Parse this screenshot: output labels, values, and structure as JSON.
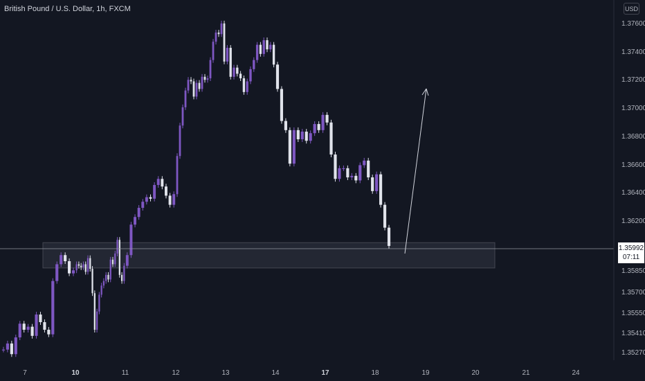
{
  "header": {
    "title": "British Pound / U.S. Dollar, 1h, FXCM"
  },
  "scale": {
    "currency": "USD"
  },
  "last_price": {
    "value": "1.35992",
    "countdown": "07:11"
  },
  "colors": {
    "background": "#131722",
    "bull": "#7e57c2",
    "bear": "#e0e3eb",
    "zone": "#2a2e39",
    "arrow": "#d1d4dc"
  },
  "chart_data": {
    "type": "candlestick",
    "x_labels": [
      "7",
      "10",
      "11",
      "12",
      "13",
      "14",
      "17",
      "18",
      "19",
      "20",
      "21",
      "24"
    ],
    "bold_x_labels": [
      "10",
      "17"
    ],
    "y_tick_labels": [
      "1.37600",
      "1.37400",
      "1.37200",
      "1.37000",
      "1.36800",
      "1.36600",
      "1.36400",
      "1.36200",
      "1.35850",
      "1.35700",
      "1.35550",
      "1.35410",
      "1.35270"
    ],
    "series": [
      {
        "day_label": "7",
        "close_path": [
          1.3533,
          1.3537,
          1.353,
          1.3541,
          1.355,
          1.3546,
          1.3548,
          1.3542,
          1.3556,
          1.3551,
          1.3546,
          1.3543,
          1.3578,
          1.3589,
          1.3595,
          1.3591,
          1.3583,
          1.3585
        ]
      },
      {
        "day_label": "10",
        "close_path": [
          1.3589,
          1.3588,
          1.3587,
          1.3589,
          1.3584,
          1.3593,
          1.3586,
          1.357,
          1.3546,
          1.3558,
          1.3569,
          1.3575,
          1.3578,
          1.3582,
          1.3579,
          1.3592,
          1.3589,
          1.3596,
          1.3605,
          1.3582,
          1.3578,
          1.3588
        ]
      },
      {
        "day_label": "11",
        "close_path": [
          1.3595,
          1.3615,
          1.362,
          1.3626,
          1.363,
          1.3633,
          1.3632,
          1.3641,
          1.3645,
          1.364,
          1.3634,
          1.3628,
          1.3635
        ]
      },
      {
        "day_label": "12",
        "close_path": [
          1.366,
          1.368,
          1.3692,
          1.3703,
          1.371,
          1.3709,
          1.3699,
          1.3708,
          1.3704,
          1.3712,
          1.371,
          1.3711,
          1.3723,
          1.3735,
          1.3741,
          1.374,
          1.3747,
          1.3722
        ]
      },
      {
        "day_label": "13",
        "close_path": [
          1.3731,
          1.3712,
          1.3718,
          1.3714,
          1.3711,
          1.3702,
          1.3709,
          1.3717,
          1.3723,
          1.3733,
          1.3727,
          1.3736,
          1.373,
          1.3733,
          1.372
        ]
      },
      {
        "day_label": "14",
        "close_path": [
          1.3704,
          1.3683,
          1.3677,
          1.3655,
          1.3677,
          1.3671,
          1.3676,
          1.367,
          1.3675,
          1.3681,
          1.3677,
          1.3687,
          1.3682,
          1.3661,
          1.3645,
          1.3652,
          1.3652,
          1.3646,
          1.3647,
          1.3644,
          1.3654,
          1.3657,
          1.3646,
          1.3637,
          1.3648,
          1.3628,
          1.3613,
          1.3601
        ]
      }
    ],
    "annotations": [
      {
        "type": "zone",
        "price_top": 1.36,
        "price_bottom": 1.3587,
        "from": "9",
        "to": "20"
      },
      {
        "type": "arrow",
        "from_price": 1.36,
        "to_price": 1.372,
        "from": "18",
        "to": "19"
      },
      {
        "type": "horizontal_line",
        "price": 1.35992
      }
    ],
    "grid": false,
    "legend": "none"
  }
}
